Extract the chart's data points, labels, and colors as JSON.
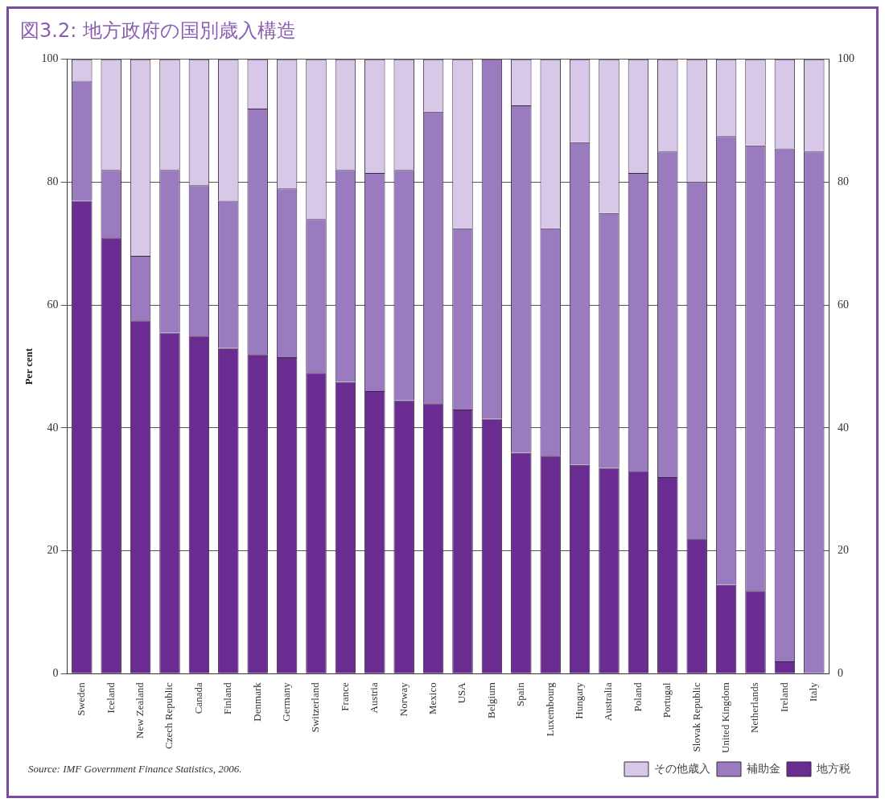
{
  "chart_data": {
    "type": "bar",
    "stacked": true,
    "title": "図3.2: 地方政府の国別歳入構造",
    "ylabel": "Per cent",
    "categories": [
      "Sweden",
      "Iceland",
      "New Zealand",
      "Czech Republic",
      "Canada",
      "Finland",
      "Denmark",
      "Germany",
      "Switzerland",
      "France",
      "Austria",
      "Norway",
      "Mexico",
      "USA",
      "Belgium",
      "Spain",
      "Luxembourg",
      "Hungary",
      "Australia",
      "Poland",
      "Portugal",
      "Slovak Republic",
      "United Kingdom",
      "Netherlands",
      "Ireland",
      "Italy"
    ],
    "series": [
      {
        "name": "地方税",
        "color": "#6a2c91",
        "values": [
          77,
          71,
          57.5,
          55.5,
          55,
          53,
          52,
          51.5,
          49,
          47.5,
          46,
          44.5,
          44,
          43,
          41.5,
          36,
          35.5,
          34,
          33.5,
          33,
          32,
          22,
          14.5,
          13.5,
          2,
          0
        ]
      },
      {
        "name": "補助金",
        "color": "#9b7bbf",
        "values": [
          19.5,
          11,
          10.5,
          26.5,
          24.5,
          24,
          40,
          27.5,
          25,
          34.5,
          35.5,
          37.5,
          47.5,
          29.5,
          58.5,
          56.5,
          37,
          52.5,
          41.5,
          48.5,
          53,
          58,
          73,
          72.5,
          83.5,
          85
        ]
      },
      {
        "name": "その他歳入",
        "color": "#d6c8e6",
        "values": [
          3.5,
          18,
          32,
          18,
          20.5,
          23,
          8,
          21,
          26,
          18,
          18.5,
          18,
          8.5,
          27.5,
          0,
          7.5,
          27.5,
          13.5,
          25,
          18.5,
          15,
          20,
          12.5,
          14,
          14.5,
          15
        ]
      }
    ],
    "ylim": [
      0,
      100
    ],
    "yticks": [
      0,
      20,
      40,
      60,
      80,
      100
    ],
    "y2lim": [
      0,
      100
    ],
    "y2ticks": [
      0,
      20,
      40,
      60,
      80,
      100
    ],
    "grid": "y",
    "legend": "bottom right",
    "annotations": [
      "Source: IMF Government Finance Statistics, 2006."
    ]
  }
}
